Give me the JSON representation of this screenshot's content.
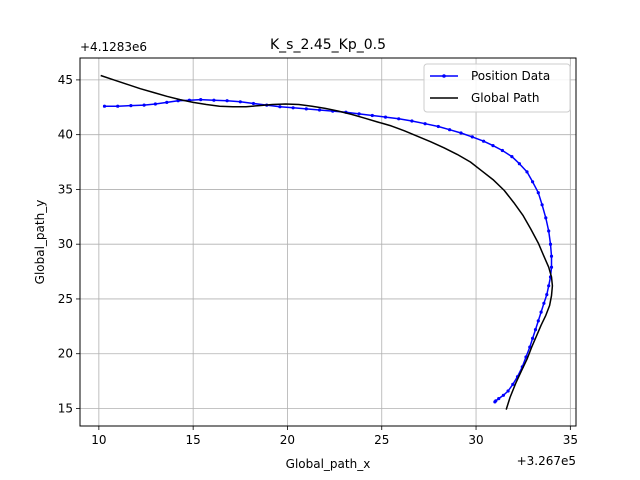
{
  "chart_data": {
    "type": "line",
    "title": "K_s_2.45_Kp_0.5",
    "xlabel": "Global_path_x",
    "ylabel": "Global_path_y",
    "x_offset_label": "+3.267e5",
    "y_offset_label": "+4.1283e6",
    "xlim": [
      9,
      35.3
    ],
    "ylim": [
      13.4,
      47
    ],
    "x_ticks": [
      "10",
      "15",
      "20",
      "25",
      "30",
      "35"
    ],
    "x_tick_values": [
      10,
      15,
      20,
      25,
      30,
      35
    ],
    "y_ticks": [
      "15",
      "20",
      "25",
      "30",
      "35",
      "40",
      "45"
    ],
    "y_tick_values": [
      15,
      20,
      25,
      30,
      35,
      40,
      45
    ],
    "grid": true,
    "legend_position": "top-right",
    "series": [
      {
        "name": "Position Data",
        "color": "#0000ff",
        "marker": "dot",
        "x": [
          10.3,
          11.0,
          11.7,
          12.4,
          13.0,
          13.6,
          14.2,
          14.8,
          15.4,
          16.1,
          16.8,
          17.5,
          18.2,
          18.9,
          19.6,
          20.3,
          21.0,
          21.7,
          22.4,
          23.1,
          23.8,
          24.5,
          25.2,
          25.9,
          26.6,
          27.3,
          28.0,
          28.6,
          29.2,
          29.8,
          30.4,
          30.9,
          31.4,
          31.9,
          32.3,
          32.7,
          33.0,
          33.3,
          33.5,
          33.7,
          33.85,
          33.95,
          34.0,
          34.0,
          33.95,
          33.85,
          33.75,
          33.6,
          33.45,
          33.3,
          33.15,
          33.0,
          32.85,
          32.65,
          32.45,
          32.2,
          31.95,
          31.7,
          31.45,
          31.2,
          31.05,
          31.0
        ],
        "y": [
          42.6,
          42.6,
          42.65,
          42.7,
          42.8,
          42.95,
          43.1,
          43.15,
          43.2,
          43.15,
          43.1,
          43.0,
          42.85,
          42.7,
          42.55,
          42.45,
          42.35,
          42.25,
          42.15,
          42.05,
          41.9,
          41.75,
          41.6,
          41.45,
          41.25,
          41.0,
          40.75,
          40.45,
          40.15,
          39.8,
          39.4,
          39.0,
          38.55,
          38.0,
          37.35,
          36.6,
          35.7,
          34.7,
          33.6,
          32.4,
          31.2,
          30.0,
          28.9,
          27.9,
          27.0,
          26.2,
          25.4,
          24.6,
          23.8,
          23.0,
          22.2,
          21.4,
          20.6,
          19.7,
          18.8,
          17.9,
          17.2,
          16.6,
          16.2,
          15.9,
          15.7,
          15.6
        ]
      },
      {
        "name": "Global Path",
        "color": "#000000",
        "marker": "none",
        "x": [
          10.1,
          10.8,
          11.5,
          12.2,
          12.9,
          13.6,
          14.3,
          15.0,
          15.7,
          16.4,
          17.1,
          17.8,
          18.5,
          19.2,
          19.9,
          20.6,
          21.3,
          22.0,
          22.7,
          23.4,
          24.1,
          24.8,
          25.5,
          26.2,
          26.9,
          27.6,
          28.3,
          29.0,
          29.7,
          30.3,
          30.9,
          31.5,
          32.0,
          32.5,
          32.9,
          33.3,
          33.6,
          33.85,
          34.0,
          34.05,
          34.0,
          33.9,
          33.7,
          33.45,
          33.2,
          32.95,
          32.7,
          32.4,
          32.1,
          31.8,
          31.6
        ],
        "y": [
          45.4,
          45.0,
          44.6,
          44.2,
          43.85,
          43.5,
          43.2,
          42.95,
          42.75,
          42.6,
          42.55,
          42.55,
          42.65,
          42.75,
          42.8,
          42.75,
          42.6,
          42.4,
          42.15,
          41.85,
          41.5,
          41.15,
          40.8,
          40.35,
          39.85,
          39.35,
          38.8,
          38.2,
          37.5,
          36.7,
          35.9,
          34.9,
          33.8,
          32.6,
          31.4,
          30.1,
          28.9,
          27.9,
          27.0,
          26.2,
          25.3,
          24.4,
          23.5,
          22.6,
          21.6,
          20.6,
          19.5,
          18.4,
          17.3,
          16.0,
          14.9
        ]
      }
    ]
  }
}
